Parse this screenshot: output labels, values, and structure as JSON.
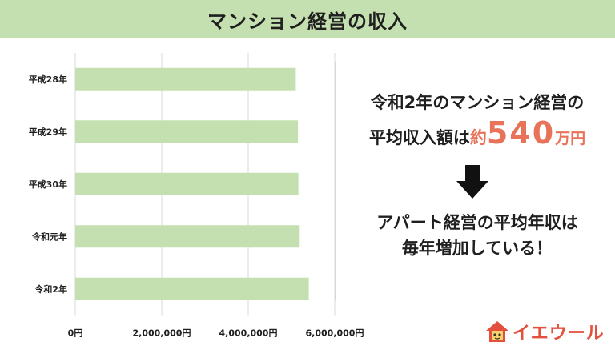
{
  "header": {
    "title": "マンション経営の収入"
  },
  "chart_data": {
    "type": "bar",
    "orientation": "horizontal",
    "title": "",
    "xlabel": "",
    "ylabel": "",
    "categories": [
      "平成28年",
      "平成29年",
      "平成30年",
      "令和元年",
      "令和2年"
    ],
    "values": [
      5100000,
      5150000,
      5160000,
      5190000,
      5400000
    ],
    "xlim": [
      0,
      6000000
    ],
    "x_ticks": [
      "0円",
      "2,000,000円",
      "4,000,000円",
      "6,000,000円"
    ],
    "grid": true,
    "legend": "none",
    "bar_color": "#c5e0b0"
  },
  "callout": {
    "line1": "令和2年のマンション経営の",
    "line2_prefix": "平均収入額は",
    "line2_accent": "約",
    "line2_value": "540",
    "line2_unit": "万円",
    "line3": "アパート経営の平均年収は",
    "line4": "毎年増加している！"
  },
  "logo": {
    "text": "イエウール",
    "color": "#e3503e"
  },
  "colors": {
    "banner": "#c5e0b0",
    "bar": "#c5e0b0",
    "accent": "#e8735a",
    "text": "#1f1f1f"
  }
}
